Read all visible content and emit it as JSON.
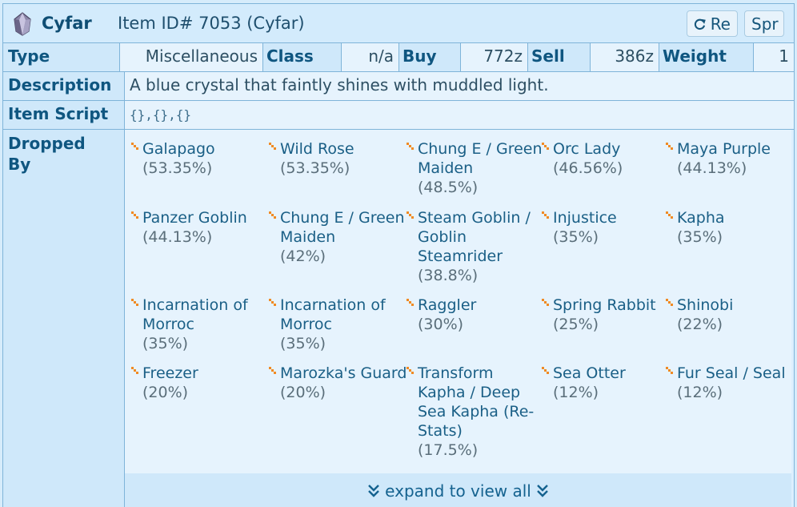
{
  "header": {
    "name": "Cyfar",
    "id_text": "Item ID# 7053 (Cyfar)",
    "refresh_label": "Re",
    "sprite_label": "Spr"
  },
  "info": {
    "type_label": "Type",
    "type_value": "Miscellaneous",
    "class_label": "Class",
    "class_value": "n/a",
    "buy_label": "Buy",
    "buy_value": "772z",
    "sell_label": "Sell",
    "sell_value": "386z",
    "weight_label": "Weight",
    "weight_value": "1"
  },
  "description": {
    "label": "Description",
    "text": "A blue crystal that faintly shines with muddled light."
  },
  "script": {
    "label": "Item Script",
    "text": "{},{},{}"
  },
  "drops": {
    "label_1": "Dropped",
    "label_2": "By",
    "items": [
      {
        "name": "Galapago",
        "rate": "(53.35%)"
      },
      {
        "name": "Wild Rose",
        "rate": "(53.35%)"
      },
      {
        "name": "Chung E / Green Maiden",
        "rate": "(48.5%)"
      },
      {
        "name": "Orc Lady",
        "rate": "(46.56%)"
      },
      {
        "name": "Maya Purple",
        "rate": "(44.13%)"
      },
      {
        "name": "Panzer Goblin",
        "rate": "(44.13%)"
      },
      {
        "name": "Chung E / Green Maiden",
        "rate": "(42%)"
      },
      {
        "name": "Steam Goblin / Goblin Steamrider",
        "rate": "(38.8%)"
      },
      {
        "name": "Injustice",
        "rate": "(35%)"
      },
      {
        "name": "Kapha",
        "rate": "(35%)"
      },
      {
        "name": "Incarnation of Morroc",
        "rate": "(35%)"
      },
      {
        "name": "Incarnation of Morroc",
        "rate": "(35%)"
      },
      {
        "name": "Raggler",
        "rate": "(30%)"
      },
      {
        "name": "Spring Rabbit",
        "rate": "(25%)"
      },
      {
        "name": "Shinobi",
        "rate": "(22%)"
      },
      {
        "name": "Freezer",
        "rate": "(20%)"
      },
      {
        "name": "Marozka's Guard",
        "rate": "(20%)"
      },
      {
        "name": "Transform Kapha / Deep Sea Kapha (Re-Stats)",
        "rate": "(17.5%)"
      },
      {
        "name": "Sea Otter",
        "rate": "(12%)"
      },
      {
        "name": "Fur Seal / Seal",
        "rate": "(12%)"
      }
    ],
    "expand_label": "expand to view all"
  },
  "colors": {
    "accent": "#14628f",
    "bullet": "#f08a24"
  }
}
